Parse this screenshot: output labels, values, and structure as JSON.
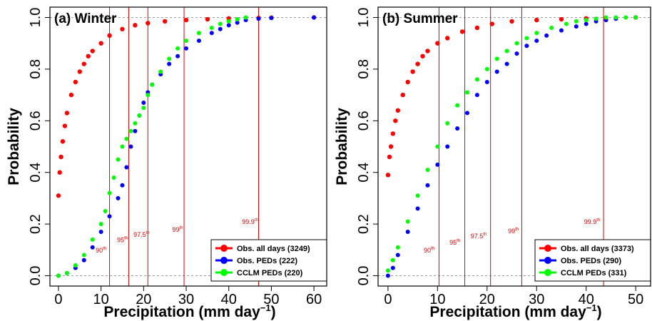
{
  "chart_data": [
    {
      "type": "scatter",
      "title": "(a) Winter",
      "xlabel": "Precipitation (mm day",
      "xlabel_sup": "−1",
      "xlabel_close": ")",
      "ylabel": "Probability",
      "xlim": [
        -2,
        63
      ],
      "ylim": [
        -0.04,
        1.04
      ],
      "xticks": [
        0,
        10,
        20,
        30,
        40,
        50,
        60
      ],
      "yticks": [
        0.0,
        0.2,
        0.4,
        0.6,
        0.8,
        1.0
      ],
      "ytick_labels": [
        "0.0",
        "0.2",
        "0.4",
        "0.6",
        "0.8",
        "1.0"
      ],
      "reference_lines_y": [
        0,
        1
      ],
      "percentiles": [
        {
          "label": "90",
          "sup": "th",
          "x": 12
        },
        {
          "label": "95",
          "sup": "th",
          "x": 16.5
        },
        {
          "label": "97.5",
          "sup": "th",
          "x": 21
        },
        {
          "label": "99",
          "sup": "th",
          "x": 29.5
        },
        {
          "label": "99.9",
          "sup": "th",
          "x": 47
        }
      ],
      "percentile_label_pos": [
        [
          10,
          0.09
        ],
        [
          15,
          0.13
        ],
        [
          19.5,
          0.15
        ],
        [
          28,
          0.17
        ],
        [
          45,
          0.2
        ]
      ],
      "legend_position": "bottom-right",
      "series": [
        {
          "name": "Obs. all days (3249)",
          "color": "#ff0000",
          "marker": 3.2,
          "x": [
            0,
            0.3,
            0.6,
            1,
            1.5,
            2,
            3,
            4,
            5,
            6,
            7,
            8,
            10,
            12,
            15,
            18,
            21,
            25,
            30,
            35,
            40,
            47,
            50,
            60
          ],
          "y": [
            0.31,
            0.4,
            0.46,
            0.52,
            0.58,
            0.63,
            0.7,
            0.75,
            0.79,
            0.82,
            0.85,
            0.87,
            0.9,
            0.93,
            0.955,
            0.97,
            0.978,
            0.985,
            0.99,
            0.993,
            0.996,
            0.998,
            0.999,
            1.0
          ]
        },
        {
          "name": "Obs. PEDs (222)",
          "color": "#0000ff",
          "marker": 3,
          "x": [
            0,
            2,
            4,
            6,
            8,
            10,
            12,
            14,
            15,
            16,
            17,
            18,
            19,
            20,
            21,
            22,
            24,
            26,
            28,
            30,
            33,
            36,
            38,
            40,
            42,
            44,
            47,
            50,
            60
          ],
          "y": [
            0.0,
            0.01,
            0.03,
            0.06,
            0.11,
            0.17,
            0.23,
            0.3,
            0.35,
            0.42,
            0.5,
            0.56,
            0.62,
            0.67,
            0.71,
            0.74,
            0.78,
            0.82,
            0.85,
            0.88,
            0.91,
            0.94,
            0.955,
            0.97,
            0.98,
            0.99,
            0.995,
            0.998,
            1.0
          ]
        },
        {
          "name": "CCLM PEDs (220)",
          "color": "#00ff00",
          "marker": 3,
          "x": [
            0,
            2,
            4,
            6,
            8,
            10,
            11,
            12,
            13,
            14,
            15,
            16,
            17,
            18,
            19,
            20,
            21,
            22,
            24,
            26,
            28,
            30,
            33,
            36,
            38,
            40,
            42,
            44
          ],
          "y": [
            0.0,
            0.01,
            0.04,
            0.08,
            0.14,
            0.2,
            0.25,
            0.32,
            0.38,
            0.45,
            0.5,
            0.53,
            0.56,
            0.59,
            0.62,
            0.65,
            0.7,
            0.74,
            0.79,
            0.84,
            0.88,
            0.91,
            0.94,
            0.96,
            0.975,
            0.985,
            0.993,
            1.0
          ]
        }
      ]
    },
    {
      "type": "scatter",
      "title": "(b) Summer",
      "xlabel": "Precipitation (mm day",
      "xlabel_sup": "−1",
      "xlabel_close": ")",
      "ylabel": "Probability",
      "xlim": [
        -2,
        53
      ],
      "ylim": [
        -0.04,
        1.04
      ],
      "xticks": [
        0,
        10,
        20,
        30,
        40,
        50
      ],
      "yticks": [
        0.0,
        0.2,
        0.4,
        0.6,
        0.8,
        1.0
      ],
      "ytick_labels": [
        "0.0",
        "0.2",
        "0.4",
        "0.6",
        "0.8",
        "1.0"
      ],
      "reference_lines_y": [
        0,
        1
      ],
      "percentiles": [
        {
          "label": "90",
          "sup": "th",
          "x": 10.3
        },
        {
          "label": "95",
          "sup": "th",
          "x": 15.5
        },
        {
          "label": "97.5",
          "sup": "th",
          "x": 20.7
        },
        {
          "label": "99",
          "sup": "th",
          "x": 27
        },
        {
          "label": "99.9",
          "sup": "th",
          "x": 43.5
        }
      ],
      "percentile_label_pos": [
        [
          8.3,
          0.09
        ],
        [
          13.5,
          0.12
        ],
        [
          18.3,
          0.145
        ],
        [
          25.3,
          0.165
        ],
        [
          41.2,
          0.2
        ]
      ],
      "legend_position": "bottom-right",
      "series": [
        {
          "name": "Obs. all days (3373)",
          "color": "#ff0000",
          "marker": 3.2,
          "x": [
            0,
            0.3,
            0.6,
            1,
            1.5,
            2,
            3,
            4,
            5,
            6,
            7,
            8,
            10,
            12,
            15,
            18,
            21,
            25,
            30,
            35,
            40,
            44,
            50
          ],
          "y": [
            0.39,
            0.46,
            0.5,
            0.55,
            0.6,
            0.64,
            0.7,
            0.75,
            0.79,
            0.82,
            0.85,
            0.87,
            0.9,
            0.92,
            0.945,
            0.96,
            0.975,
            0.985,
            0.99,
            0.993,
            0.996,
            0.999,
            1.0
          ]
        },
        {
          "name": "Obs. PEDs (290)",
          "color": "#0000ff",
          "marker": 3,
          "x": [
            0,
            1,
            2,
            4,
            6,
            8,
            10,
            12,
            14,
            16,
            18,
            20,
            22,
            24,
            26,
            28,
            30,
            32,
            35,
            38,
            40,
            42,
            44,
            46,
            50
          ],
          "y": [
            0.0,
            0.03,
            0.08,
            0.17,
            0.26,
            0.35,
            0.43,
            0.5,
            0.57,
            0.63,
            0.7,
            0.75,
            0.79,
            0.82,
            0.86,
            0.89,
            0.91,
            0.93,
            0.95,
            0.965,
            0.975,
            0.985,
            0.99,
            0.995,
            1.0
          ]
        },
        {
          "name": "CCLM PEDs (331)",
          "color": "#00ff00",
          "marker": 3,
          "x": [
            0,
            1,
            2,
            4,
            6,
            8,
            10,
            12,
            14,
            16,
            18,
            20,
            22,
            24,
            26,
            28,
            30,
            33,
            36,
            38,
            40,
            42,
            44,
            46,
            48,
            50
          ],
          "y": [
            0.02,
            0.06,
            0.11,
            0.21,
            0.31,
            0.41,
            0.5,
            0.59,
            0.66,
            0.71,
            0.76,
            0.8,
            0.84,
            0.87,
            0.9,
            0.92,
            0.94,
            0.96,
            0.975,
            0.985,
            0.99,
            0.995,
            1.0,
            1.0,
            1.0,
            1.0
          ]
        }
      ]
    }
  ]
}
